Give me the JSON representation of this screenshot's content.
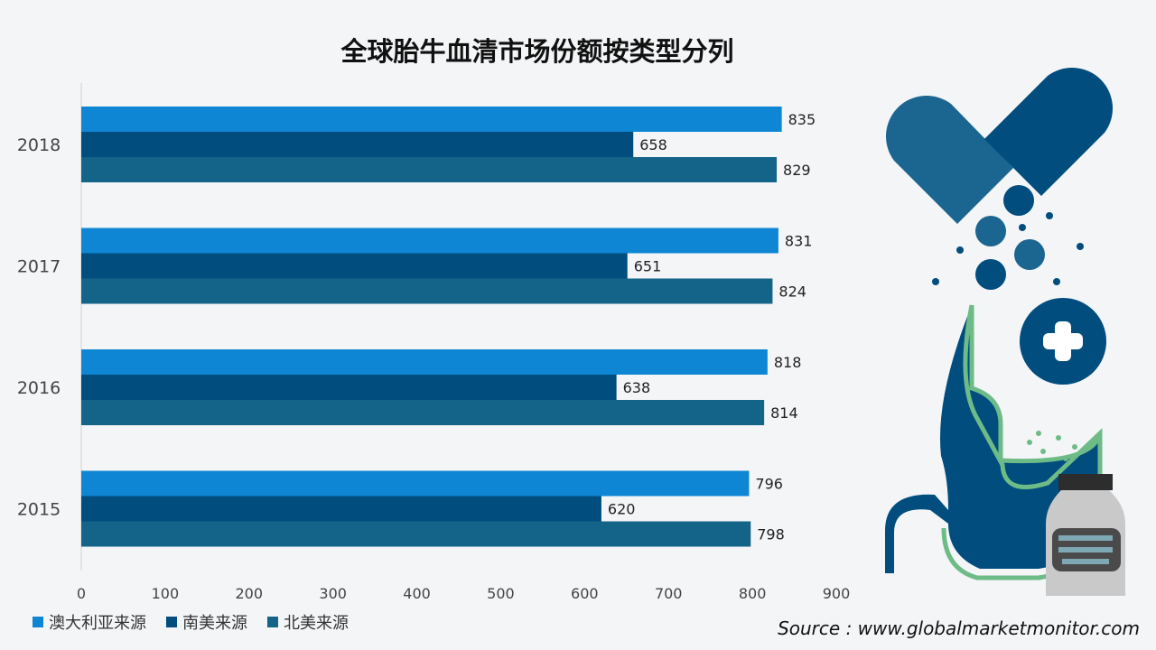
{
  "chart_data": {
    "type": "bar",
    "orientation": "horizontal",
    "title": "全球胎牛血清市场份额按类型分列",
    "categories": [
      "2018",
      "2017",
      "2016",
      "2015"
    ],
    "series": [
      {
        "name": "澳大利亚来源",
        "values": [
          835,
          831,
          818,
          796
        ],
        "color": "#0e86d4"
      },
      {
        "name": "南美来源",
        "values": [
          658,
          651,
          638,
          620
        ],
        "color": "#004d7e"
      },
      {
        "name": "北美来源",
        "values": [
          829,
          824,
          814,
          798
        ],
        "color": "#146489"
      }
    ],
    "xlim": [
      0,
      900
    ],
    "xticks": [
      "0",
      "100",
      "200",
      "300",
      "400",
      "500",
      "600",
      "700",
      "800",
      "900"
    ],
    "grid": false,
    "legend_position": "bottom-left"
  },
  "source": "Source : www.globalmarketmonitor.com",
  "colors": {
    "background": "#f3f5f7",
    "deco_dark": "#004d7e",
    "deco_mid": "#1b6591",
    "deco_green": "#6dbb87",
    "bottle": "#c9c9c9"
  }
}
